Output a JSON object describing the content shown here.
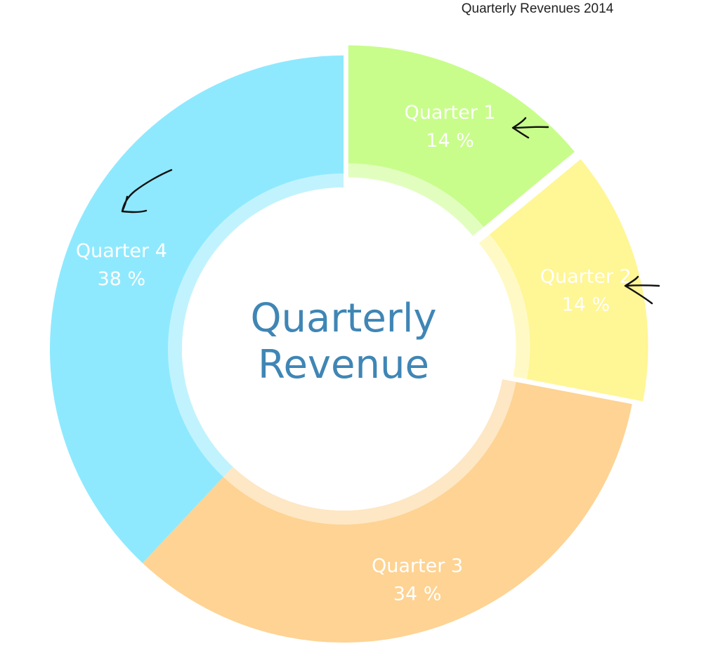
{
  "chart_data": {
    "type": "pie",
    "variant": "donut",
    "title": "Quarterly Revenues 2014",
    "center_label": [
      "Quarterly",
      "Revenue"
    ],
    "categories": [
      "Quarter 1",
      "Quarter 2",
      "Quarter 3",
      "Quarter 4"
    ],
    "values": [
      14,
      14,
      34,
      38
    ],
    "value_labels": [
      "14 %",
      "14 %",
      "34 %",
      "38 %"
    ],
    "colors": [
      "#c8fd8b",
      "#fff695",
      "#fed393",
      "#8ee9fe"
    ],
    "exploded": [
      "Quarter 1",
      "Quarter 2"
    ],
    "annotations": [
      "hand-drawn arrows pointing at Quarter 1, Quarter 2 and Quarter 4 labels"
    ]
  }
}
